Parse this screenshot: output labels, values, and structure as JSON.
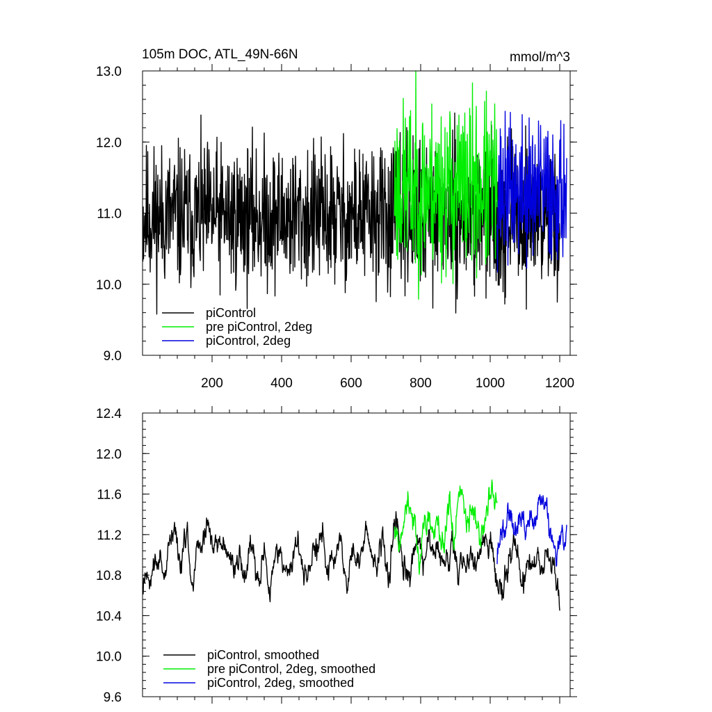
{
  "chart_data": [
    {
      "type": "line",
      "title": "105m DOC, ATL_49N-66N",
      "units": "mmol/m^3",
      "xlim": [
        0,
        1230
      ],
      "ylim": [
        9.0,
        13.0
      ],
      "x_ticks": [
        200,
        400,
        600,
        800,
        1000,
        1200
      ],
      "x_tick_labels": [
        "200",
        "400",
        "600",
        "800",
        "1000",
        "1200"
      ],
      "y_ticks": [
        9.0,
        10.0,
        11.0,
        12.0,
        13.0
      ],
      "y_tick_labels": [
        "9.0",
        "10.0",
        "11.0",
        "12.0",
        "13.0"
      ],
      "legend_position": "bottom-left",
      "series": [
        {
          "name": "piControl",
          "color": "#000000",
          "x_start": 1,
          "x_end": 1200,
          "mean": 10.95,
          "amplitude": 0.5,
          "seed": 11,
          "spiky": true
        },
        {
          "name": "pre piControl, 2deg",
          "color": "#00ee00",
          "x_start": 725,
          "x_end": 1020,
          "mean": 11.35,
          "amplitude": 0.6,
          "seed": 23,
          "spiky": true
        },
        {
          "name": "piControl, 2deg",
          "color": "#0000dd",
          "x_start": 1020,
          "x_end": 1220,
          "mean": 11.3,
          "amplitude": 0.5,
          "seed": 37,
          "spiky": true
        }
      ]
    },
    {
      "type": "line",
      "xlim": [
        0,
        1230
      ],
      "ylim": [
        9.6,
        12.4
      ],
      "x_ticks": [
        200,
        400,
        600,
        800,
        1000,
        1200
      ],
      "y_ticks": [
        9.6,
        10.0,
        10.4,
        10.8,
        11.2,
        11.6,
        12.0,
        12.4
      ],
      "y_tick_labels": [
        "9.6",
        "10.0",
        "10.4",
        "10.8",
        "11.2",
        "11.6",
        "12.0",
        "12.4"
      ],
      "legend_position": "bottom-left",
      "series": [
        {
          "name": "piControl, smoothed",
          "color": "#000000",
          "x_start": 1,
          "x_end": 1200,
          "mean": 10.95,
          "amplitude": 0.3,
          "seed": 11,
          "spiky": false
        },
        {
          "name": "pre piControl, 2deg, smoothed",
          "color": "#00ee00",
          "x_start": 725,
          "x_end": 1020,
          "mean": 11.35,
          "amplitude": 0.35,
          "seed": 23,
          "spiky": false
        },
        {
          "name": "piControl, 2deg, smoothed",
          "color": "#0000dd",
          "x_start": 1020,
          "x_end": 1220,
          "mean": 11.3,
          "amplitude": 0.3,
          "seed": 37,
          "spiky": false
        }
      ]
    }
  ]
}
